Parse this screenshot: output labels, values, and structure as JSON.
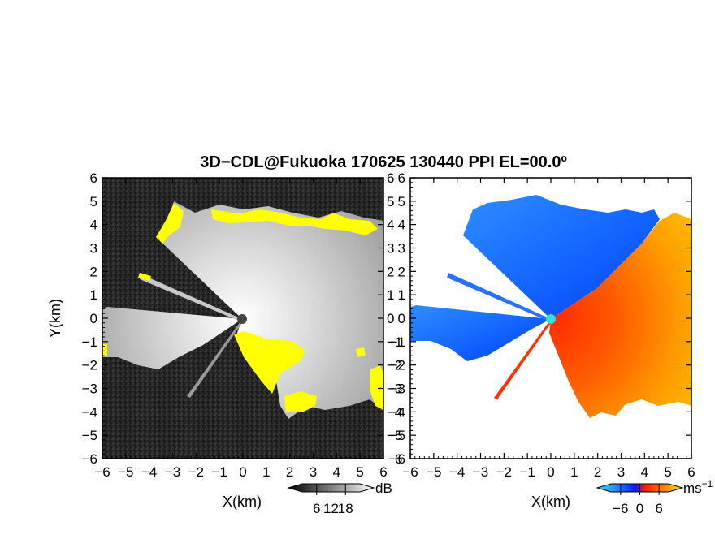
{
  "title": "3D−CDL@Fukuoka 170625 130440 PPI EL=00.0º",
  "colors": {
    "background": "#ffffff",
    "echo_mask": "#ffff00",
    "radar_site_left": "#444444",
    "radar_site_right": "#33dddd"
  },
  "chart_data": [
    {
      "type": "heatmap",
      "panel": "left",
      "quantity": "SNR",
      "xlabel": "X(km)",
      "ylabel": "Y(km)",
      "xlim": [
        -6,
        6
      ],
      "ylim": [
        -6,
        6
      ],
      "xticks": [
        "−6",
        "−5",
        "−4",
        "−3",
        "−2",
        "−1",
        "0",
        "1",
        "2",
        "3",
        "4",
        "5",
        "6"
      ],
      "yticks": [
        "6",
        "5",
        "4",
        "3",
        "2",
        "1",
        "0",
        "−1",
        "−2",
        "−3",
        "−4",
        "−5",
        "−6"
      ],
      "colorbar": {
        "label": "dB",
        "ticks": [
          "6",
          "12",
          "18"
        ],
        "tick_values": [
          6,
          12,
          18
        ],
        "range": [
          0,
          24
        ],
        "colormap": "grayscale"
      }
    },
    {
      "type": "heatmap",
      "panel": "right",
      "quantity": "Doppler velocity",
      "xlabel": "X(km)",
      "ylabel": "",
      "xlim": [
        -6,
        6
      ],
      "ylim": [
        -6,
        6
      ],
      "xticks": [
        "−6",
        "−5",
        "−4",
        "−3",
        "−2",
        "−1",
        "0",
        "1",
        "2",
        "3",
        "4",
        "5",
        "6"
      ],
      "yticks": [
        "6",
        "5",
        "4",
        "3",
        "2",
        "1",
        "0",
        "−1",
        "−2",
        "−3",
        "−4",
        "−5",
        "−6"
      ],
      "colorbar": {
        "label": "ms",
        "label_sup": "−1",
        "ticks": [
          "−6",
          "0",
          "6"
        ],
        "tick_values": [
          -6,
          0,
          6
        ],
        "range": [
          -9,
          9
        ],
        "colormap": "cyan-blue-red-yellow"
      }
    }
  ]
}
